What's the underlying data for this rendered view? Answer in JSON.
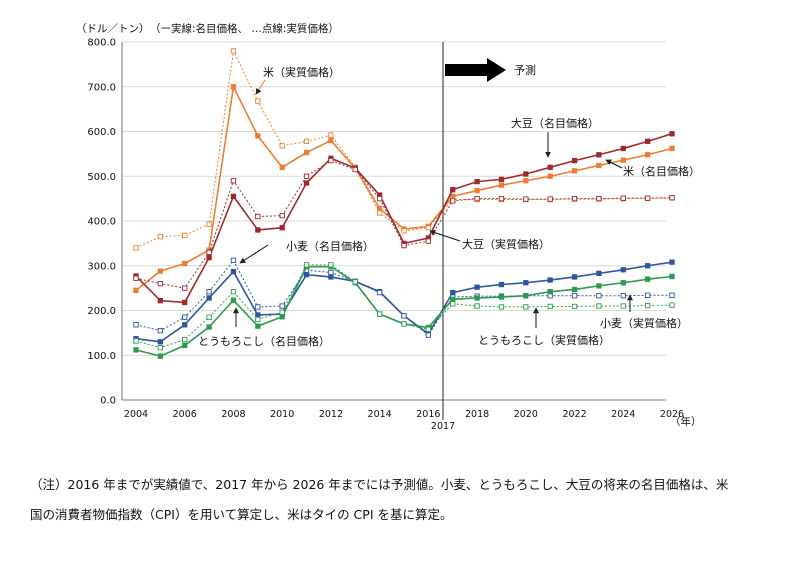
{
  "chart_data": {
    "type": "line",
    "y_unit_label": "（ドル／トン）",
    "line_style_legend": "（ー実線:名目価格、 …点線:実質価格）",
    "x_unit_label": "（年）",
    "forecast_label": "予測",
    "forecast_start_label": "2017",
    "forecast_start_year": 2017,
    "ylim": [
      0,
      800
    ],
    "y_ticks": [
      0,
      100,
      200,
      300,
      400,
      500,
      600,
      700,
      800
    ],
    "y_tick_labels": [
      "0.0",
      "100.0",
      "200.0",
      "300.0",
      "400.0",
      "500.0",
      "600.0",
      "700.0",
      "800.0"
    ],
    "xlim": [
      2004,
      2026
    ],
    "x_ticks": [
      2004,
      2006,
      2008,
      2010,
      2012,
      2014,
      2016,
      2018,
      2020,
      2022,
      2024,
      2026
    ],
    "x_tick_labels": [
      "2004",
      "2006",
      "2008",
      "2010",
      "2012",
      "2014",
      "2016",
      "2018",
      "2020",
      "2022",
      "2024",
      "2026"
    ],
    "x": [
      2004,
      2005,
      2006,
      2007,
      2008,
      2009,
      2010,
      2011,
      2012,
      2013,
      2014,
      2015,
      2016,
      2017,
      2018,
      2019,
      2020,
      2021,
      2022,
      2023,
      2024,
      2025,
      2026
    ],
    "series": [
      {
        "name": "米（名目価格）",
        "style": "solid",
        "color": "#ED7D31",
        "values": [
          245,
          288,
          305,
          335,
          700,
          590,
          520,
          553,
          580,
          518,
          428,
          382,
          388,
          455,
          468,
          480,
          490,
          500,
          512,
          524,
          536,
          548,
          562
        ]
      },
      {
        "name": "米（実質価格）",
        "style": "dotted",
        "color": "#ED7D31",
        "values": [
          340,
          365,
          368,
          393,
          780,
          668,
          568,
          578,
          592,
          520,
          418,
          378,
          385,
          448,
          448,
          448,
          448,
          448,
          449,
          449,
          450,
          451,
          452
        ]
      },
      {
        "name": "大豆（名目価格）",
        "style": "solid",
        "color": "#A0292B",
        "values": [
          277,
          222,
          218,
          318,
          455,
          380,
          385,
          485,
          540,
          518,
          458,
          350,
          362,
          470,
          488,
          493,
          505,
          520,
          535,
          548,
          562,
          578,
          595
        ]
      },
      {
        "name": "大豆（実質価格）",
        "style": "dotted",
        "color": "#A0292B",
        "values": [
          272,
          260,
          250,
          330,
          490,
          410,
          412,
          500,
          535,
          515,
          450,
          345,
          355,
          445,
          450,
          450,
          449,
          449,
          450,
          450,
          451,
          451,
          452
        ]
      },
      {
        "name": "小麦（名目価格）",
        "style": "solid",
        "color": "#2E54A6",
        "values": [
          137,
          130,
          168,
          228,
          287,
          190,
          192,
          280,
          275,
          265,
          242,
          188,
          148,
          240,
          252,
          258,
          262,
          268,
          275,
          283,
          291,
          300,
          308
        ]
      },
      {
        "name": "小麦（実質価格）",
        "style": "dotted",
        "color": "#2E54A6",
        "values": [
          168,
          155,
          185,
          242,
          312,
          208,
          210,
          290,
          285,
          265,
          240,
          188,
          145,
          230,
          232,
          232,
          233,
          233,
          233,
          233,
          233,
          234,
          234
        ]
      },
      {
        "name": "とうもろこし（名目価格）",
        "style": "solid",
        "color": "#2E9B4B",
        "values": [
          112,
          98,
          122,
          163,
          223,
          165,
          186,
          298,
          298,
          262,
          192,
          170,
          162,
          225,
          228,
          230,
          233,
          242,
          247,
          255,
          262,
          270,
          276
        ]
      },
      {
        "name": "とうもろこし（実質価格）",
        "style": "dotted",
        "color": "#2E9B4B",
        "values": [
          132,
          117,
          135,
          185,
          242,
          180,
          196,
          302,
          302,
          264,
          192,
          170,
          158,
          215,
          210,
          208,
          208,
          209,
          209,
          210,
          210,
          211,
          212
        ]
      }
    ],
    "annotations": {
      "rice_real": "米（実質価格）",
      "soy_nominal": "大豆（名目価格）",
      "rice_nominal": "米（名目価格）",
      "soy_real": "大豆（実質価格）",
      "wheat_nominal": "小麦（名目価格）",
      "corn_nominal": "とうもろこし（名目価格）",
      "wheat_real": "小麦（実質価格）",
      "corn_real": "とうもろこし（実質価格）"
    }
  },
  "note": {
    "line1": "（注）2016 年までが実績値で、2017 年から 2026 年までには予測値。小麦、とうもろこし、大豆の将来の名目価格は、米",
    "line2": "国の消費者物価指数（CPI）を用いて算定し、米はタイの CPI を基に算定。"
  }
}
